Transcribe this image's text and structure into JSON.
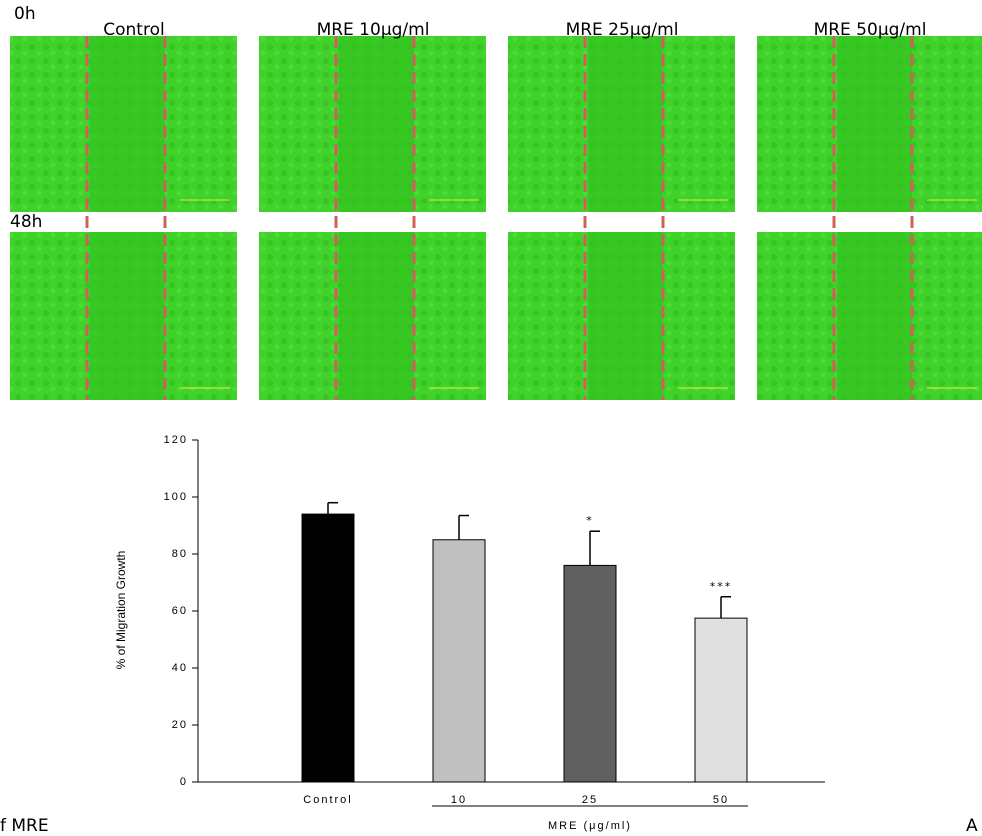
{
  "panel_labels": [
    "0h",
    "48h"
  ],
  "column_headers": [
    "Control",
    "MRE  10μg/ml",
    "MRE  25μg/ml",
    "MRE  50μg/ml"
  ],
  "caption_fragments": [
    "f MRE",
    "A"
  ],
  "chart_data": {
    "type": "bar",
    "y_label": "% of Migration Growth",
    "x_group_label": "MRE (μg/ml)",
    "categories": [
      "Control",
      "10",
      "25",
      "50"
    ],
    "values": [
      94,
      85,
      76,
      57.5
    ],
    "errors": [
      4,
      8.5,
      12,
      7.5
    ],
    "significance": [
      null,
      null,
      "*",
      "***"
    ],
    "colors": [
      "#000000",
      "#c0c0c0",
      "#606060",
      "#e0e0e0"
    ],
    "ylim": [
      0,
      120
    ],
    "yticks": [
      0,
      20,
      40,
      60,
      80,
      100,
      120
    ]
  }
}
